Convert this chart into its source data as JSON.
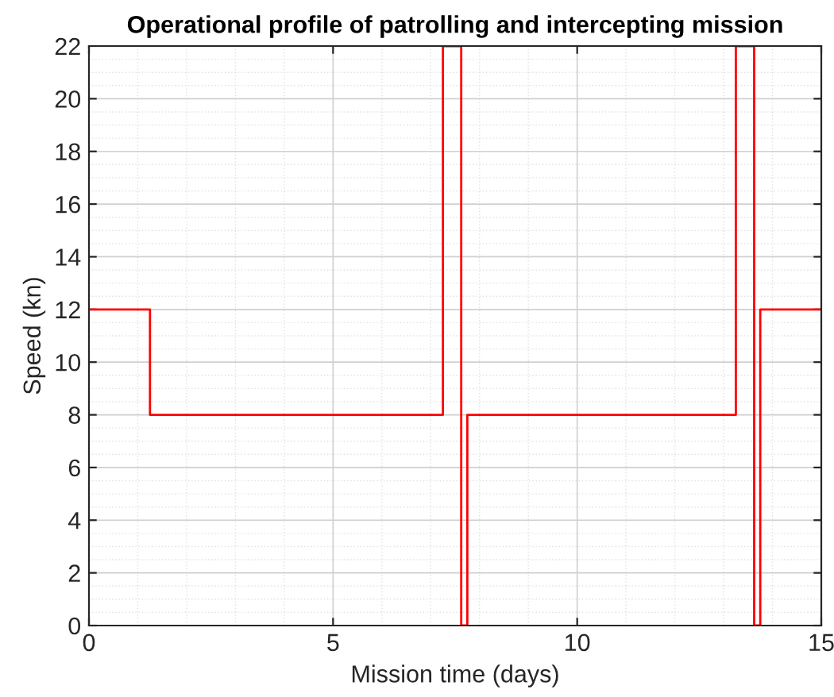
{
  "chart_data": {
    "type": "step",
    "title": "Operational profile of patrolling and intercepting mission",
    "xlabel": "Mission time (days)",
    "ylabel": "Speed (kn)",
    "x": [
      0,
      1.25,
      7.25,
      7.625,
      7.75,
      13.25,
      13.625,
      13.75,
      15
    ],
    "series": [
      {
        "color": "#ff0000",
        "values": [
          12,
          8,
          22,
          0,
          8,
          22,
          0,
          12,
          12
        ]
      }
    ],
    "xlim": [
      0,
      15
    ],
    "xticks": [
      0,
      5,
      10,
      15
    ],
    "ylim": [
      0,
      22
    ],
    "yticks": [
      0,
      2,
      4,
      6,
      8,
      10,
      12,
      14,
      16,
      18,
      20,
      22
    ],
    "grid": true,
    "legend": false
  }
}
